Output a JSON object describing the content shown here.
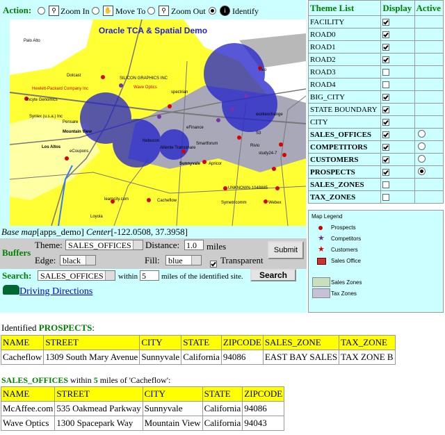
{
  "toolbar": {
    "label": "Action:",
    "tools": [
      "Zoom In",
      "Move To",
      "Zoom Out",
      "Identify"
    ],
    "selected": 3
  },
  "map": {
    "title": "Oracle TCA & Spatial Demo",
    "labels": [
      "Palo Alto",
      "Dotcast",
      "SILICON GRAPHICS INC",
      "Hewlett-Packard Company Inc",
      "Wave Optics",
      "Incyte Genomics",
      "Synlex (u.s.a.) Inc",
      "Pensare",
      "Mountain View",
      "Los Altos",
      "eCoupons",
      "spectrian",
      "Tivo",
      "eFinance",
      "Nebucon",
      "Alliente Transshare",
      "Smartforum",
      "Sunnyvale",
      "Apricor",
      "Rivio",
      "study24-7",
      "S3",
      "workexchange",
      "UNKNOWN-1048885",
      "learncity.com",
      "Cacheflow",
      "Symetricomm",
      "Webex",
      "Loyola"
    ]
  },
  "basemap": {
    "label1": "Base map",
    "value1": "[apps_demo]",
    "label2": "Center",
    "value2": "[-122.0508, 37.3958]"
  },
  "buffers": {
    "label": "Buffers",
    "theme_label": "Theme:",
    "theme": "SALES_OFFICES",
    "distance_label": "Distance:",
    "distance": "1.0",
    "unit": "miles",
    "submit": "Submit",
    "edge_label": "Edge:",
    "edge": "black",
    "fill_label": "Fill:",
    "fill": "blue",
    "transparent_label": "Transparent",
    "transparent": true
  },
  "search": {
    "label": "Search:",
    "theme": "SALES_OFFICES",
    "within": "within",
    "distance": "5",
    "suffix": "miles of the identified site.",
    "button": "Search"
  },
  "directions": "Driving Directions",
  "themes": {
    "headers": [
      "Theme List",
      "Display",
      "Active"
    ],
    "rows": [
      {
        "name": "FACILITY",
        "display": true
      },
      {
        "name": "ROAD0",
        "display": true
      },
      {
        "name": "ROAD1",
        "display": true
      },
      {
        "name": "ROAD2",
        "display": true
      },
      {
        "name": "ROAD3",
        "display": false
      },
      {
        "name": "ROAD4",
        "display": false
      },
      {
        "name": "BIG_CITY",
        "display": true
      },
      {
        "name": "STATE BOUNDARY",
        "display": true
      },
      {
        "name": "CITY",
        "display": true
      },
      {
        "name": "SALES_OFFICES",
        "display": true,
        "active": false,
        "bold": true
      },
      {
        "name": "COMPETITORS",
        "display": true,
        "active": false,
        "bold": true
      },
      {
        "name": "CUSTOMERS",
        "display": true,
        "active": false,
        "bold": true
      },
      {
        "name": "PROSPECTS",
        "display": true,
        "active": true,
        "bold": true
      },
      {
        "name": "SALES_ZONES",
        "display": false,
        "bold": true
      },
      {
        "name": "TAX_ZONES",
        "display": false,
        "bold": true
      }
    ]
  },
  "legend": {
    "title": "Map Legend",
    "items": [
      "Prospects",
      "Competitors",
      "Customers",
      "Sales Office",
      "Sales Zones",
      "Tax Zones"
    ]
  },
  "prospects": {
    "intro": "Identified ",
    "theme": "PROSPECTS",
    "colon": ":",
    "headers": [
      "NAME",
      "STREET",
      "CITY",
      "STATE",
      "ZIPCODE",
      "SALES_ZONE",
      "TAX_ZONE"
    ],
    "rows": [
      [
        "Cacheflow",
        "1309 South Mary Avenue",
        "Sunnyvale",
        "California",
        "94086",
        "EAST BAY SALES",
        "TAX ZONE B"
      ]
    ]
  },
  "offices": {
    "theme": "SALES_OFFICES",
    "within": " within ",
    "distance": "5",
    "suffix": " miles of 'Cacheflow':",
    "headers": [
      "NAME",
      "STREET",
      "CITY",
      "STATE",
      "ZIPCODE"
    ],
    "rows": [
      [
        "McAffee.com",
        "535 Oakmead Parkway",
        "Sunnyvale",
        "California",
        "94086"
      ],
      [
        "Wave Optics",
        "1300 Spacepark Way",
        "Mountain View",
        "California",
        "94043"
      ]
    ]
  }
}
